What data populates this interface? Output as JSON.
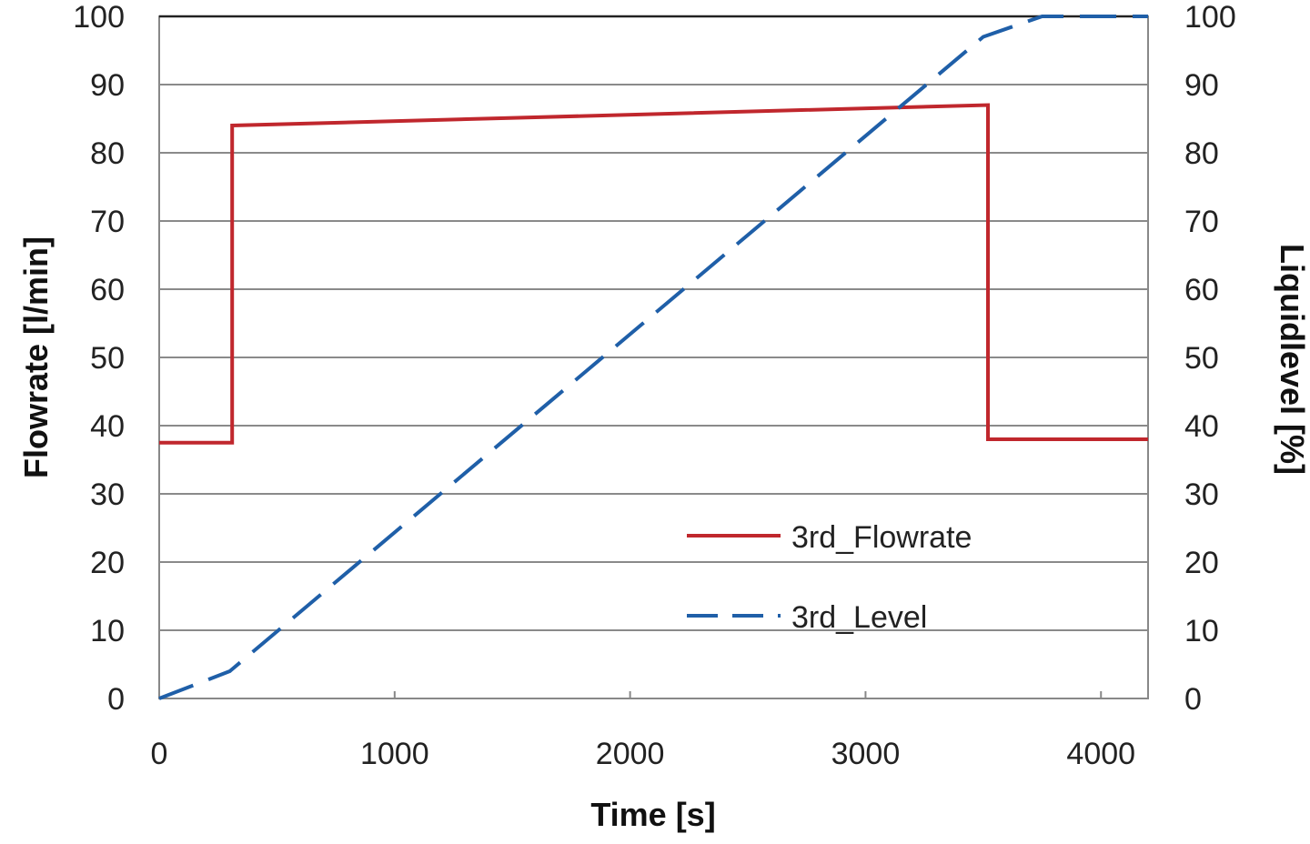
{
  "chart_data": {
    "type": "line",
    "xlabel": "Time [s]",
    "ylabel_left": "Flowrate [l/min]",
    "ylabel_right": "Liquidlevel [%]",
    "xlim": [
      0,
      4200
    ],
    "ylim_left": [
      0,
      100
    ],
    "ylim_right": [
      0,
      100
    ],
    "x_ticks": [
      "0",
      "1000",
      "2000",
      "3000",
      "4000"
    ],
    "x_tick_values": [
      0,
      1000,
      2000,
      3000,
      4000
    ],
    "y_ticks_left": [
      "0",
      "10",
      "20",
      "30",
      "40",
      "50",
      "60",
      "70",
      "80",
      "90",
      "100"
    ],
    "y_ticks_right": [
      "0",
      "10",
      "20",
      "30",
      "40",
      "50",
      "60",
      "70",
      "80",
      "90",
      "100"
    ],
    "y_tick_values": [
      0,
      10,
      20,
      30,
      40,
      50,
      60,
      70,
      80,
      90,
      100
    ],
    "grid": "horizontal",
    "legend_position": "lower-right",
    "series": [
      {
        "name": "3rd_Flowrate",
        "axis": "left",
        "style": "solid",
        "color": "#c0272d",
        "points": [
          [
            0,
            37.5
          ],
          [
            310,
            37.5
          ],
          [
            310,
            84
          ],
          [
            3520,
            87
          ],
          [
            3520,
            38
          ],
          [
            4200,
            38
          ]
        ]
      },
      {
        "name": "3rd_Level",
        "axis": "right",
        "style": "dashed",
        "color": "#1f5fa8",
        "points": [
          [
            0,
            0
          ],
          [
            300,
            4
          ],
          [
            3500,
            97
          ],
          [
            3750,
            100
          ],
          [
            4200,
            100
          ]
        ]
      }
    ]
  }
}
